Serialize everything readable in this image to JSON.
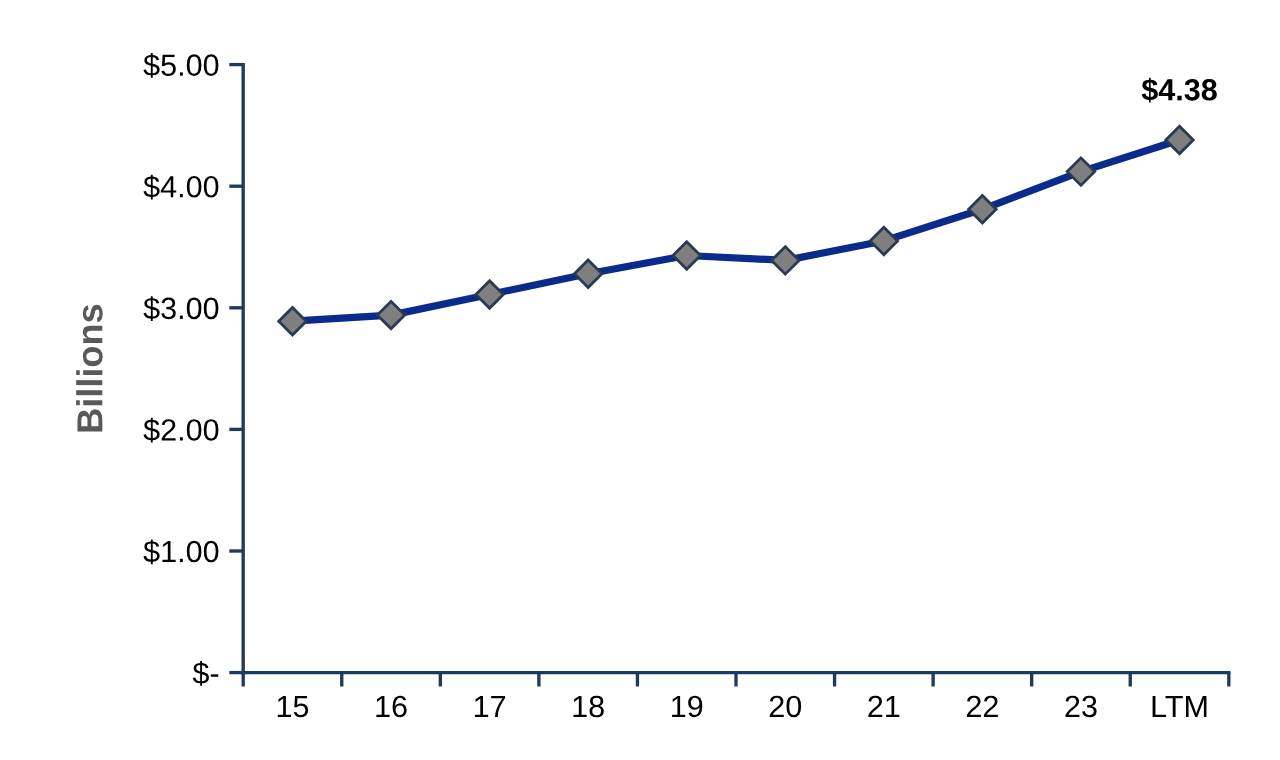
{
  "chart_data": {
    "type": "line",
    "ylabel": "Billions",
    "categories": [
      "15",
      "16",
      "17",
      "18",
      "19",
      "20",
      "21",
      "22",
      "23",
      "LTM"
    ],
    "series": [
      {
        "color": "#0a2a8c",
        "values": [
          2.89,
          2.94,
          3.11,
          3.28,
          3.43,
          3.39,
          3.55,
          3.81,
          4.12,
          4.38
        ],
        "value_labels": [
          null,
          null,
          null,
          null,
          null,
          null,
          null,
          null,
          null,
          "$4.38"
        ]
      }
    ],
    "marker": "diamond",
    "line_style": "solid",
    "ylim": [
      0,
      5
    ],
    "yticks": [
      {
        "value": 0,
        "label": "$-"
      },
      {
        "value": 1,
        "label": "$1.00"
      },
      {
        "value": 2,
        "label": "$2.00"
      },
      {
        "value": 3,
        "label": "$3.00"
      },
      {
        "value": 4,
        "label": "$4.00"
      },
      {
        "value": 5,
        "label": "$5.00"
      }
    ],
    "grid": false,
    "legend": false
  }
}
